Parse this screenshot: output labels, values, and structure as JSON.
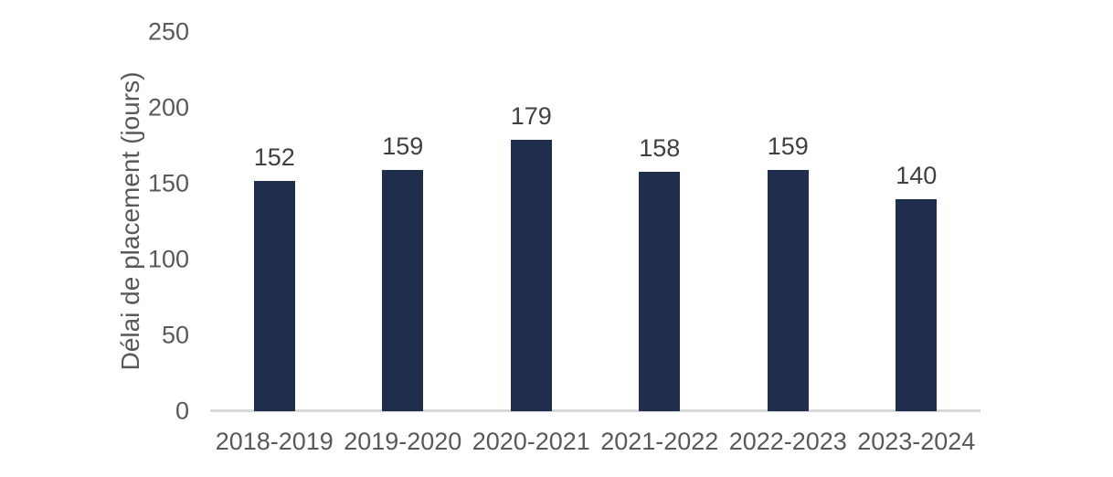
{
  "chart_data": {
    "type": "bar",
    "title": "",
    "xlabel": "",
    "ylabel": "Délai de placement (jours)",
    "categories": [
      "2018-2019",
      "2019-2020",
      "2020-2021",
      "2021-2022",
      "2022-2023",
      "2023-2024"
    ],
    "values": [
      152,
      159,
      179,
      158,
      159,
      140
    ],
    "data_labels": [
      "152",
      "159",
      "179",
      "158",
      "159",
      "140"
    ],
    "ylim": [
      0,
      250
    ],
    "yticks": [
      0,
      50,
      100,
      150,
      200,
      250
    ],
    "ytick_labels": [
      "0",
      "50",
      "100",
      "150",
      "200",
      "250"
    ],
    "grid": false,
    "legend_position": "none",
    "colors": {
      "bar": "#1f2e4c",
      "axis_line": "#d9d9d9",
      "tick_label": "#595959",
      "data_label": "#404040",
      "background": "#ffffff"
    }
  }
}
